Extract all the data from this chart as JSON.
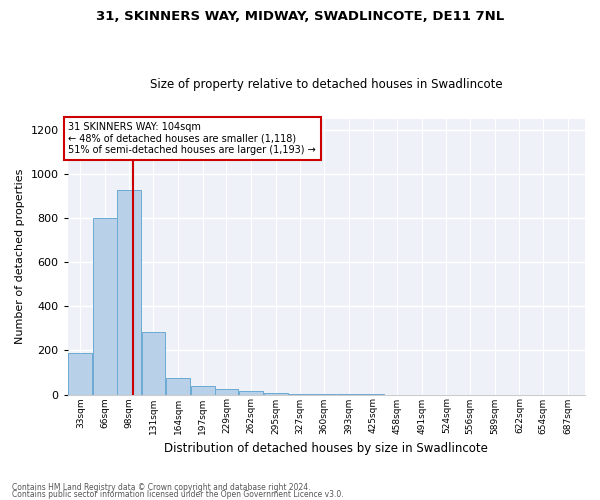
{
  "title1": "31, SKINNERS WAY, MIDWAY, SWADLINCOTE, DE11 7NL",
  "title2": "Size of property relative to detached houses in Swadlincote",
  "xlabel": "Distribution of detached houses by size in Swadlincote",
  "ylabel": "Number of detached properties",
  "bin_labels": [
    "33sqm",
    "66sqm",
    "98sqm",
    "131sqm",
    "164sqm",
    "197sqm",
    "229sqm",
    "262sqm",
    "295sqm",
    "327sqm",
    "360sqm",
    "393sqm",
    "425sqm",
    "458sqm",
    "491sqm",
    "524sqm",
    "556sqm",
    "589sqm",
    "622sqm",
    "654sqm",
    "687sqm"
  ],
  "bin_centers": [
    33,
    66,
    98,
    131,
    164,
    197,
    229,
    262,
    295,
    327,
    360,
    393,
    425,
    458,
    491,
    524,
    556,
    589,
    622,
    654,
    687
  ],
  "bin_width": 33,
  "bar_values": [
    190,
    800,
    925,
    285,
    75,
    40,
    25,
    15,
    8,
    3,
    2,
    1,
    1,
    0,
    0,
    0,
    0,
    0,
    0,
    0,
    0
  ],
  "bar_color": "#b8d0e8",
  "bar_edge_color": "#6aaad4",
  "vline_x": 104,
  "vline_color": "#cc0000",
  "annotation_text": "31 SKINNERS WAY: 104sqm\n← 48% of detached houses are smaller (1,118)\n51% of semi-detached houses are larger (1,193) →",
  "annotation_box_color": "#ffffff",
  "annotation_box_edge": "#cc0000",
  "ylim": [
    0,
    1250
  ],
  "yticks": [
    0,
    200,
    400,
    600,
    800,
    1000,
    1200
  ],
  "xlim_left": 16,
  "xlim_right": 710,
  "footer1": "Contains HM Land Registry data © Crown copyright and database right 2024.",
  "footer2": "Contains public sector information licensed under the Open Government Licence v3.0.",
  "bg_color": "#eef2f8"
}
